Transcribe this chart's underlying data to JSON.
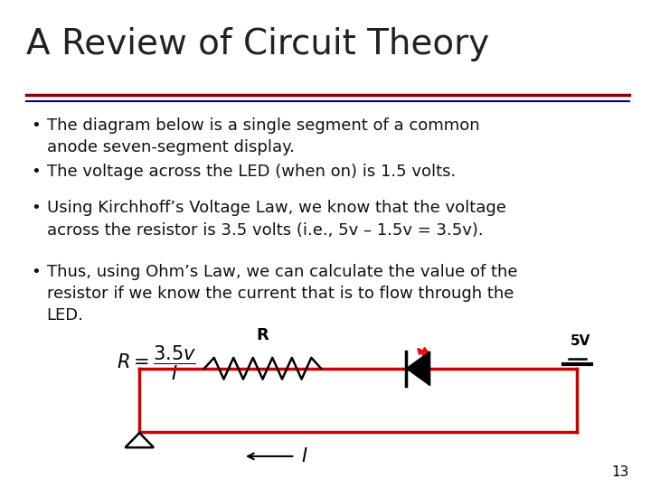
{
  "title": "A Review of Circuit Theory",
  "title_fontsize": 28,
  "title_color": "#222222",
  "separator_color1": "#8B0000",
  "separator_color2": "#00008B",
  "bullet_points": [
    "The diagram below is a single segment of a common\nanode seven-segment display.",
    "The voltage across the LED (when on) is 1.5 volts.",
    "Using Kirchhoff’s Voltage Law, we know that the voltage\nacross the resistor is 3.5 volts (i.e., 5v – 1.5v = 3.5v).",
    "Thus, using Ohm’s Law, we can calculate the value of the\nresistor if we know the current that is to flow through the\nLED."
  ],
  "bullet_fontsize": 13,
  "bullet_color": "#111111",
  "bg_color": "#ffffff",
  "circuit_wire_color": "#cc0000",
  "page_number": "13"
}
